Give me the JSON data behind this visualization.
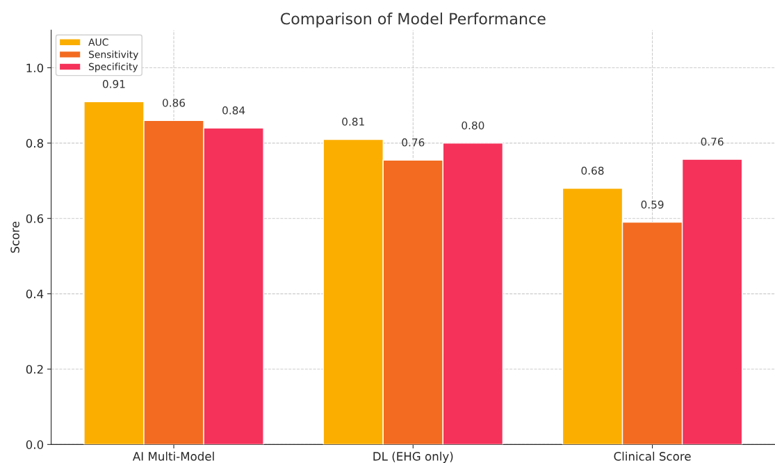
{
  "chart_data": {
    "type": "bar",
    "title": "Comparison of Model Performance",
    "ylabel": "Score",
    "categories": [
      "AI Multi-Model",
      "DL (EHG only)",
      "Clinical Score"
    ],
    "series": [
      {
        "name": "AUC",
        "color": "#fbae00",
        "values": [
          0.91,
          0.81,
          0.68
        ],
        "value_labels": [
          "0.91",
          "0.81",
          "0.68"
        ]
      },
      {
        "name": "Sensitivity",
        "color": "#f26b21",
        "values": [
          0.86,
          0.755,
          0.59
        ],
        "value_labels": [
          "0.86",
          "0.76",
          "0.59"
        ]
      },
      {
        "name": "Specificity",
        "color": "#f5325a",
        "values": [
          0.84,
          0.8,
          0.757
        ],
        "value_labels": [
          "0.84",
          "0.80",
          "0.76"
        ]
      }
    ],
    "ylim": [
      0,
      1.1
    ],
    "yticks": [
      {
        "value": 0,
        "label": "0.0"
      },
      0.2,
      0.4,
      0.6,
      0.8,
      {
        "value": 1,
        "label": "1.0"
      }
    ],
    "grid": true,
    "legend": "top left"
  }
}
